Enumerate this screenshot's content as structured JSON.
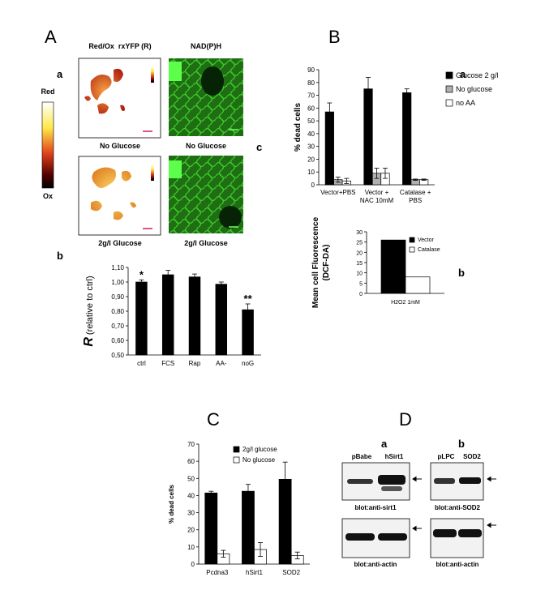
{
  "panel_labels": {
    "A": "A",
    "B": "B",
    "C": "C",
    "D": "D"
  },
  "panel_A": {
    "a": "a",
    "c": "c",
    "col_titles": [
      "Red/Ox  rxYFP (R)",
      "NAD(P)H"
    ],
    "scale": {
      "top": "Red",
      "bottom": "Ox"
    },
    "captions": [
      [
        "No Glucose",
        "No Glucose"
      ],
      [
        "2g/l Glucose",
        "2g/l Glucose"
      ]
    ]
  },
  "chart_data": [
    {
      "type": "bar",
      "panel_label": "b",
      "ylabel_symbol": "R",
      "ylabel": "(relative to ctrl)",
      "categories": [
        "ctrl",
        "FCS",
        "Rap",
        "AA-",
        "noG"
      ],
      "values": [
        1.0,
        1.05,
        1.035,
        0.985,
        0.81
      ],
      "errors": [
        0.015,
        0.03,
        0.02,
        0.015,
        0.04
      ],
      "significance": [
        "*",
        null,
        null,
        null,
        "**"
      ],
      "color": "#000000",
      "ylim": [
        0.5,
        1.1
      ],
      "yticks": [
        {
          "value": 0.5,
          "label": "0,50"
        },
        {
          "value": 0.6,
          "label": "0,60"
        },
        {
          "value": 0.7,
          "label": "0,70"
        },
        {
          "value": 0.8,
          "label": "0,80"
        },
        {
          "value": 0.9,
          "label": "0,90"
        },
        {
          "value": 1.0,
          "label": "1,00"
        },
        {
          "value": 1.1,
          "label": "1,10"
        }
      ]
    },
    {
      "type": "bar",
      "panel_label": "a",
      "ylabel": "% dead cells",
      "categories": [
        [
          "Vector+PBS"
        ],
        [
          "Vector +",
          "NAC 10mM"
        ],
        [
          "Catalase +",
          "PBS"
        ]
      ],
      "series": [
        {
          "name": "Glucose 2 g/l",
          "color": "#000000",
          "values": [
            57,
            75,
            72
          ],
          "errors": [
            7,
            9,
            3
          ]
        },
        {
          "name": "No glucose",
          "color": "#b0b0b0",
          "values": [
            4,
            9,
            4
          ],
          "errors": [
            2,
            4,
            0.5
          ]
        },
        {
          "name": "no AA",
          "color": "#ffffff",
          "values": [
            3,
            9,
            4
          ],
          "errors": [
            2,
            4,
            0.5
          ]
        }
      ],
      "ylim": [
        0,
        90
      ],
      "yticks": [
        0,
        10,
        20,
        30,
        40,
        50,
        60,
        70,
        80,
        90
      ]
    },
    {
      "type": "bar",
      "panel_label": "b",
      "ylabel": [
        "Mean cell Fluorescence",
        "(DCF-DA)"
      ],
      "categories": [
        "H2O2 1mM"
      ],
      "series": [
        {
          "name": "Vector",
          "color": "#000000",
          "values": [
            26
          ]
        },
        {
          "name": "Catalase",
          "color": "#ffffff",
          "values": [
            8
          ]
        }
      ],
      "ylim": [
        0,
        30
      ],
      "yticks": [
        0,
        5,
        10,
        15,
        20,
        25,
        30
      ]
    },
    {
      "type": "bar",
      "ylabel": "% dead cells",
      "categories": [
        "Pcdna3",
        "hSirt1",
        "SOD2"
      ],
      "series": [
        {
          "name": "2g/l glucose",
          "color": "#000000",
          "values": [
            41.5,
            42.5,
            49.5
          ],
          "errors": [
            1,
            4,
            10
          ]
        },
        {
          "name": "No glucose",
          "color": "#ffffff",
          "values": [
            6,
            8.5,
            5
          ],
          "errors": [
            2,
            4,
            2
          ]
        }
      ],
      "ylim": [
        0,
        70
      ],
      "yticks": [
        0,
        10,
        20,
        30,
        40,
        50,
        60,
        70
      ]
    }
  ],
  "panel_D": {
    "blots": [
      {
        "label": "a",
        "lanes": [
          "pBabe",
          "hSirt1"
        ],
        "captions": [
          "blot:anti-sirt1",
          "blot:anti-actin"
        ]
      },
      {
        "label": "b",
        "lanes": [
          "pLPC",
          "SOD2"
        ],
        "captions": [
          "blot:anti-SOD2",
          "blot:anti-actin"
        ]
      }
    ]
  }
}
